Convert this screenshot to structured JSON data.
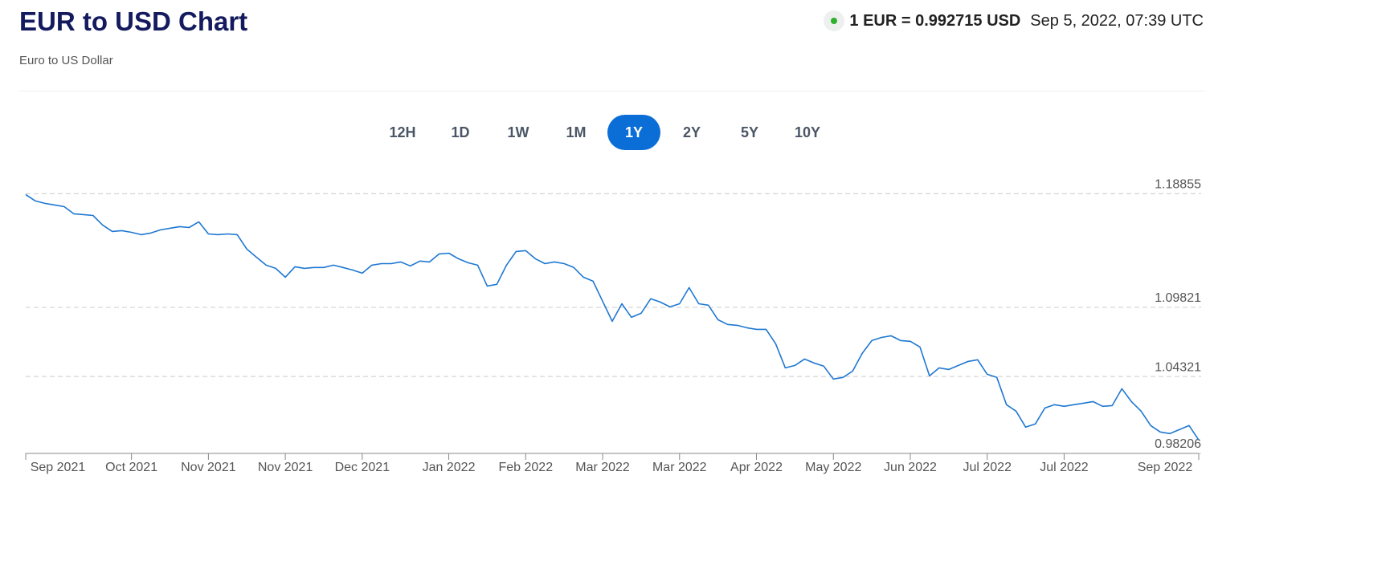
{
  "header": {
    "title": "EUR to USD Chart",
    "subtitle": "Euro to US Dollar",
    "rate": "1 EUR = 0.992715 USD",
    "timestamp": "Sep 5, 2022, 07:39 UTC"
  },
  "ranges": {
    "options": [
      "12H",
      "1D",
      "1W",
      "1M",
      "1Y",
      "2Y",
      "5Y",
      "10Y"
    ],
    "selected": "1Y"
  },
  "chart_data": {
    "type": "line",
    "color": "#1f78d1",
    "grid": true,
    "categories": [
      "Sep 2021",
      null,
      null,
      null,
      null,
      null,
      null,
      null,
      null,
      null,
      null,
      "Oct 2021",
      null,
      null,
      null,
      null,
      null,
      null,
      null,
      "Nov 2021",
      null,
      null,
      null,
      null,
      null,
      null,
      null,
      "Nov 2021",
      null,
      null,
      null,
      null,
      null,
      null,
      null,
      "Dec 2021",
      null,
      null,
      null,
      null,
      null,
      null,
      null,
      null,
      "Jan 2022",
      null,
      null,
      null,
      null,
      null,
      null,
      null,
      "Feb 2022",
      null,
      null,
      null,
      null,
      null,
      null,
      null,
      "Mar 2022",
      null,
      null,
      null,
      null,
      null,
      null,
      null,
      "Mar 2022",
      null,
      null,
      null,
      null,
      null,
      null,
      null,
      "Apr 2022",
      null,
      null,
      null,
      null,
      null,
      null,
      null,
      "May 2022",
      null,
      null,
      null,
      null,
      null,
      null,
      null,
      "Jun 2022",
      null,
      null,
      null,
      null,
      null,
      null,
      null,
      "Jul 2022",
      null,
      null,
      null,
      null,
      null,
      null,
      null,
      "Jul 2022",
      null,
      null,
      null,
      null,
      null,
      null,
      null,
      null,
      null,
      null,
      null,
      null,
      null,
      "Sep 2022"
    ],
    "values": [
      1.1879,
      1.1828,
      1.1809,
      1.1796,
      1.1783,
      1.1726,
      1.172,
      1.1713,
      1.1637,
      1.1586,
      1.1592,
      1.1579,
      1.156,
      1.1573,
      1.1598,
      1.1611,
      1.1624,
      1.1617,
      1.1662,
      1.1566,
      1.156,
      1.1566,
      1.156,
      1.1445,
      1.1381,
      1.1318,
      1.1292,
      1.1222,
      1.1305,
      1.1292,
      1.1299,
      1.1299,
      1.1318,
      1.1299,
      1.1279,
      1.1254,
      1.1318,
      1.133,
      1.133,
      1.1343,
      1.1311,
      1.135,
      1.1343,
      1.1407,
      1.1413,
      1.1369,
      1.1337,
      1.1318,
      1.1152,
      1.1165,
      1.1318,
      1.1426,
      1.1433,
      1.1369,
      1.133,
      1.1343,
      1.133,
      1.1299,
      1.1222,
      1.119,
      1.1031,
      1.0871,
      1.1011,
      1.0903,
      1.0935,
      1.105,
      1.1024,
      1.0986,
      1.1011,
      1.1139,
      1.1011,
      1.0999,
      1.0884,
      1.0846,
      1.0839,
      1.082,
      1.0807,
      1.0807,
      1.0693,
      1.0501,
      1.052,
      1.0571,
      1.0539,
      1.0514,
      1.0412,
      1.0425,
      1.0475,
      1.0616,
      1.0718,
      1.0743,
      1.0756,
      1.0718,
      1.0712,
      1.0667,
      1.0437,
      1.0501,
      1.0488,
      1.052,
      1.0552,
      1.0565,
      1.045,
      1.0425,
      1.0208,
      1.0157,
      1.0029,
      1.0055,
      1.0182,
      1.0208,
      1.0195,
      1.0208,
      1.022,
      1.0233,
      1.0195,
      1.0201,
      1.0335,
      1.0233,
      1.0157,
      1.0042,
      0.9991,
      0.9978,
      1.001,
      1.0042,
      0.9927
    ],
    "ylim": [
      0.98206,
      1.1952
    ],
    "yticks": [
      1.18855,
      1.09821,
      1.04321,
      0.98206
    ]
  }
}
